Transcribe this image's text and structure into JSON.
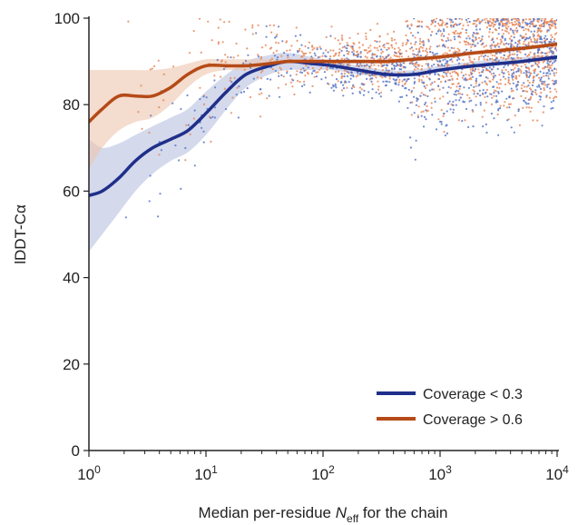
{
  "chart_data": {
    "type": "line",
    "ylabel": "lDDT-Cα",
    "xlabel_parts": {
      "pre": "Median per-residue ",
      "var": "N",
      "sub": "eff",
      "post": " for the chain"
    },
    "xscale": "log",
    "xlim": [
      1,
      10000
    ],
    "ylim": [
      0,
      100
    ],
    "x_ticks": [
      {
        "value": 1,
        "base": "10",
        "exp": "0"
      },
      {
        "value": 10,
        "base": "10",
        "exp": "1"
      },
      {
        "value": 100,
        "base": "10",
        "exp": "2"
      },
      {
        "value": 1000,
        "base": "10",
        "exp": "3"
      },
      {
        "value": 10000,
        "base": "10",
        "exp": "4"
      }
    ],
    "y_ticks": [
      "0",
      "20",
      "40",
      "60",
      "80",
      "100"
    ],
    "legend_placement": "bottom-right",
    "series": [
      {
        "name": "Coverage < 0.3",
        "color": "#1f2f8a",
        "band_color": "#b8c0e0",
        "dot_color": "#5b78c8",
        "x": [
          1,
          1.3,
          1.8,
          2.5,
          3.5,
          5,
          7,
          10,
          15,
          22,
          35,
          50,
          80,
          120,
          200,
          350,
          600,
          1000,
          2000,
          5000,
          10000
        ],
        "y": [
          59,
          60,
          63,
          67,
          70,
          72,
          74,
          78,
          83,
          87,
          89,
          90,
          89.5,
          89,
          88,
          87,
          87,
          88,
          89,
          90,
          91
        ],
        "y_low": [
          46,
          50,
          55,
          60,
          64,
          67,
          69,
          73,
          79,
          84,
          87,
          88,
          88,
          88,
          87,
          86.5,
          86.5,
          87.5,
          88.5,
          89.5,
          90.5
        ],
        "y_high": [
          72,
          70,
          71,
          73,
          75,
          77,
          79,
          83,
          87,
          90,
          91.5,
          92,
          91,
          90,
          89,
          88,
          88,
          89,
          90,
          91,
          91.5
        ]
      },
      {
        "name": "Coverage > 0.6",
        "color": "#b54a17",
        "band_color": "#ecc5ae",
        "dot_color": "#e8885a",
        "x": [
          1,
          1.3,
          1.8,
          2.5,
          3.5,
          5,
          7,
          10,
          15,
          22,
          35,
          50,
          80,
          120,
          200,
          350,
          600,
          1000,
          2000,
          5000,
          10000
        ],
        "y": [
          76,
          79,
          82,
          82,
          82,
          84,
          87,
          89,
          89,
          89,
          89.5,
          90,
          90,
          90,
          90,
          90,
          90.5,
          91,
          92,
          93,
          94
        ],
        "y_low": [
          65,
          70,
          74,
          76,
          77,
          80,
          84,
          87,
          88,
          88,
          89,
          89.5,
          89.5,
          89.5,
          89.5,
          89.5,
          90,
          90.5,
          91.5,
          92.5,
          93.5
        ],
        "y_high": [
          88,
          88,
          88,
          88,
          88,
          88.5,
          89.5,
          90.5,
          90.5,
          90.5,
          90.5,
          90.5,
          90.5,
          90.5,
          90.5,
          90.5,
          91,
          91.5,
          92.5,
          93.5,
          94.5
        ]
      }
    ]
  }
}
